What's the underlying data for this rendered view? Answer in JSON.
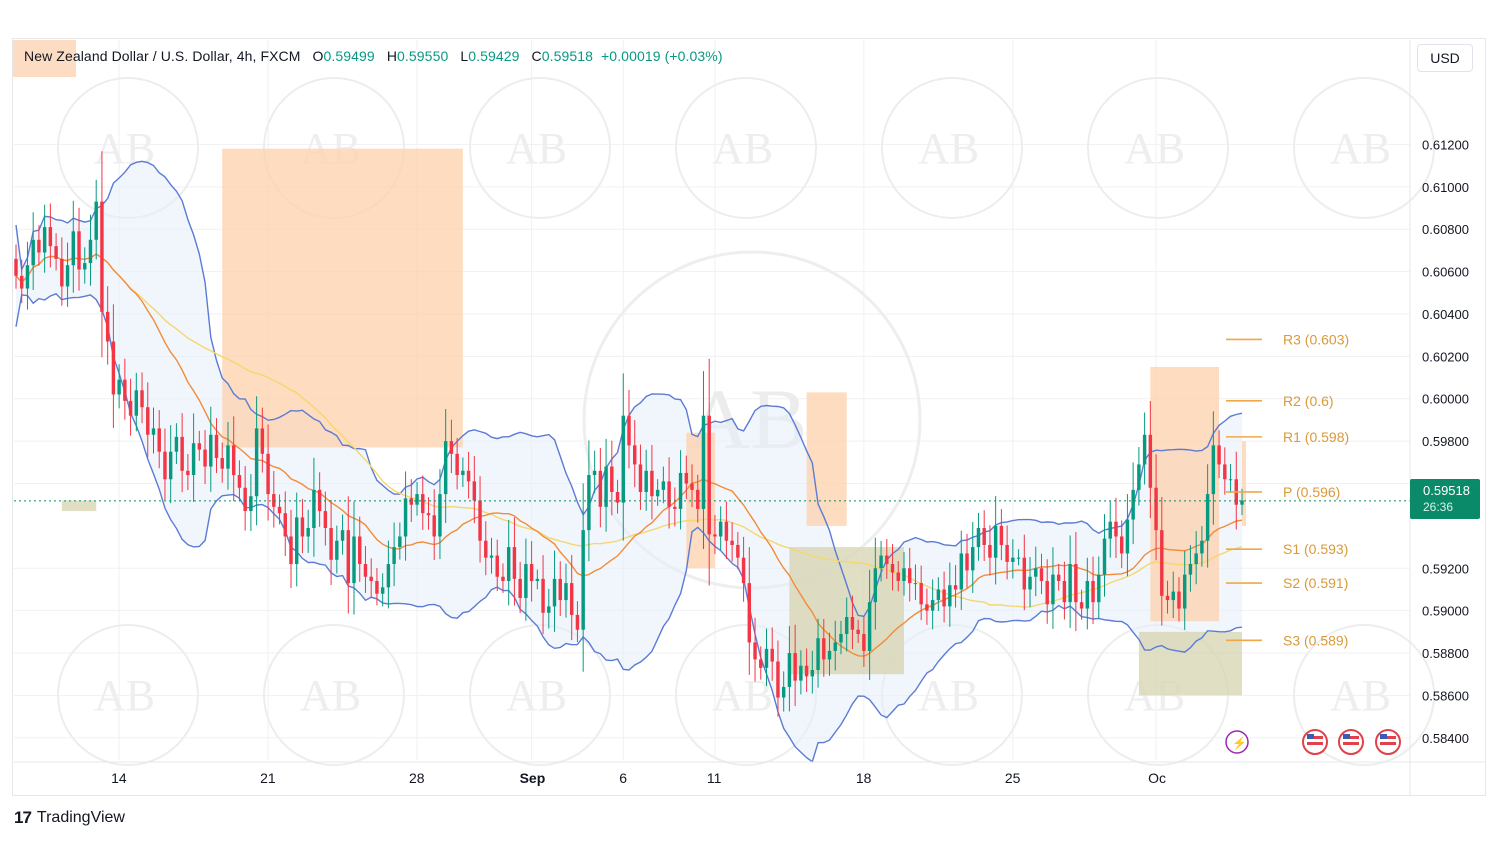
{
  "header": {
    "symbol_title": "New Zealand Dollar / U.S. Dollar, 4h, FXCM",
    "open_label": "O",
    "open_value": "0.59499",
    "high_label": "H",
    "high_value": "0.59550",
    "low_label": "L",
    "low_value": "0.59429",
    "close_label": "C",
    "close_value": "0.59518",
    "change": "+0.00019 (+0.03%)"
  },
  "toolbar": {
    "currency": "USD"
  },
  "branding": {
    "logo_text": "TradingView",
    "watermark": "AB"
  },
  "current_price": {
    "value": "0.59518",
    "countdown": "26:36"
  },
  "colors": {
    "up": "#089981",
    "down": "#f23645",
    "bollinger": "#5b7bd5",
    "ma_fast": "#f28c38",
    "ma_slow": "#f5d76e",
    "pivot": "#f0a844",
    "supply_zone": "#fcd3b0",
    "demand_zone": "#d8d6b4",
    "band_fill": "#e3eefa"
  },
  "chart_data": {
    "type": "candlestick",
    "symbol": "NZDUSD",
    "timeframe": "4h",
    "ylim": [
      0.583,
      0.6132
    ],
    "y_ticks": [
      "0.61200",
      "0.61000",
      "0.60800",
      "0.60600",
      "0.60400",
      "0.60200",
      "0.60000",
      "0.59800",
      "0.59600",
      "0.59200",
      "0.59000",
      "0.58800",
      "0.58600",
      "0.58400"
    ],
    "x_ticks": [
      "14",
      "21",
      "28",
      "Sep",
      "6",
      "11",
      "18",
      "25",
      "Oc"
    ],
    "pivots": [
      {
        "name": "R3",
        "label": "R3 (0.603)",
        "value": 0.6028
      },
      {
        "name": "R2",
        "label": "R2 (0.6)",
        "value": 0.5999
      },
      {
        "name": "R1",
        "label": "R1 (0.598)",
        "value": 0.5982
      },
      {
        "name": "P",
        "label": "P (0.596)",
        "value": 0.5956
      },
      {
        "name": "S1",
        "label": "S1 (0.593)",
        "value": 0.5929
      },
      {
        "name": "S2",
        "label": "S2 (0.591)",
        "value": 0.5913
      },
      {
        "name": "S3",
        "label": "S3 (0.589)",
        "value": 0.5886
      }
    ],
    "close_series": [
      0.6058,
      0.6052,
      0.6063,
      0.6075,
      0.6069,
      0.6081,
      0.6072,
      0.6066,
      0.6053,
      0.6063,
      0.6079,
      0.6061,
      0.6064,
      0.6075,
      0.6093,
      0.6041,
      0.6027,
      0.6002,
      0.6009,
      0.5999,
      0.5992,
      0.6004,
      0.5996,
      0.5983,
      0.5986,
      0.5975,
      0.5962,
      0.5975,
      0.5982,
      0.5966,
      0.5964,
      0.5979,
      0.5976,
      0.5968,
      0.5983,
      0.5972,
      0.5967,
      0.5978,
      0.5964,
      0.5958,
      0.5947,
      0.5954,
      0.5986,
      0.5974,
      0.5955,
      0.5949,
      0.5946,
      0.5935,
      0.5922,
      0.5944,
      0.5935,
      0.5939,
      0.5957,
      0.5947,
      0.5939,
      0.5924,
      0.5933,
      0.5938,
      0.5913,
      0.5935,
      0.5922,
      0.5916,
      0.5914,
      0.5908,
      0.5911,
      0.5922,
      0.593,
      0.5935,
      0.5953,
      0.595,
      0.5955,
      0.5946,
      0.5945,
      0.5935,
      0.5955,
      0.598,
      0.5974,
      0.5964,
      0.5966,
      0.5961,
      0.5952,
      0.5933,
      0.5925,
      0.5926,
      0.5916,
      0.5914,
      0.593,
      0.5915,
      0.5906,
      0.5922,
      0.5914,
      0.5915,
      0.5899,
      0.5902,
      0.5915,
      0.5905,
      0.5913,
      0.5898,
      0.5891,
      0.5938,
      0.5964,
      0.5966,
      0.5949,
      0.5968,
      0.5956,
      0.5951,
      0.5992,
      0.5978,
      0.5969,
      0.5956,
      0.5966,
      0.5954,
      0.5957,
      0.5961,
      0.5949,
      0.5948,
      0.5965,
      0.596,
      0.5957,
      0.5948,
      0.5992,
      0.5936,
      0.5935,
      0.5942,
      0.5933,
      0.5931,
      0.5925,
      0.5913,
      0.5885,
      0.5877,
      0.5873,
      0.5882,
      0.5876,
      0.5859,
      0.5864,
      0.588,
      0.5867,
      0.5874,
      0.5869,
      0.5872,
      0.5887,
      0.5877,
      0.5881,
      0.5885,
      0.5889,
      0.5897,
      0.5891,
      0.5889,
      0.5881,
      0.5904,
      0.592,
      0.5926,
      0.5922,
      0.5918,
      0.5914,
      0.592,
      0.5913,
      0.5913,
      0.5903,
      0.59,
      0.5905,
      0.591,
      0.5902,
      0.5912,
      0.591,
      0.5927,
      0.5919,
      0.593,
      0.5939,
      0.5931,
      0.5925,
      0.594,
      0.5931,
      0.5923,
      0.5925,
      0.5925,
      0.591,
      0.5916,
      0.592,
      0.5914,
      0.5903,
      0.5917,
      0.5914,
      0.5904,
      0.5922,
      0.5904,
      0.5901,
      0.5914,
      0.5904,
      0.5917,
      0.5934,
      0.5942,
      0.5935,
      0.5927,
      0.5943,
      0.5957,
      0.5969,
      0.5983,
      0.5958,
      0.5938,
      0.5907,
      0.5905,
      0.5909,
      0.5901,
      0.5917,
      0.5922,
      0.5927,
      0.5933,
      0.5955,
      0.5978,
      0.5969,
      0.5962,
      0.5962,
      0.595,
      0.5952
    ],
    "indicators": [
      "Bollinger Bands",
      "Moving Average (fast)",
      "Moving Average (slow)",
      "Pivot Points",
      "Supply/Demand Zones"
    ]
  }
}
